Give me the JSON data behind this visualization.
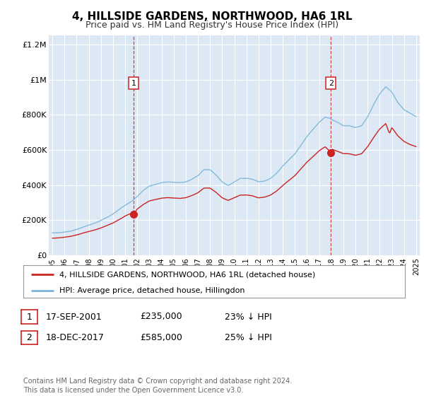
{
  "title": "4, HILLSIDE GARDENS, NORTHWOOD, HA6 1RL",
  "subtitle": "Price paid vs. HM Land Registry's House Price Index (HPI)",
  "background_color": "#dce9f5",
  "hpi_color": "#7ab4d8",
  "price_color": "#cc2222",
  "vline_color": "#cc2222",
  "purchase1": {
    "date_num": 2001.72,
    "price": 235000,
    "label": "1",
    "date_str": "17-SEP-2001",
    "pct": "23% ↓ HPI"
  },
  "purchase2": {
    "date_num": 2017.97,
    "price": 585000,
    "label": "2",
    "date_str": "18-DEC-2017",
    "pct": "25% ↓ HPI"
  },
  "legend_line1": "4, HILLSIDE GARDENS, NORTHWOOD, HA6 1RL (detached house)",
  "legend_line2": "HPI: Average price, detached house, Hillingdon",
  "footnote": "Contains HM Land Registry data © Crown copyright and database right 2024.\nThis data is licensed under the Open Government Licence v3.0.",
  "ylim": [
    0,
    1250000
  ],
  "yticks": [
    0,
    200000,
    400000,
    600000,
    800000,
    1000000,
    1200000
  ],
  "ytick_labels": [
    "£0",
    "£200K",
    "£400K",
    "£600K",
    "£800K",
    "£1M",
    "£1.2M"
  ],
  "xlim": [
    1994.7,
    2025.3
  ],
  "xticks": [
    1995,
    1996,
    1997,
    1998,
    1999,
    2000,
    2001,
    2002,
    2003,
    2004,
    2005,
    2006,
    2007,
    2008,
    2009,
    2010,
    2011,
    2012,
    2013,
    2014,
    2015,
    2016,
    2017,
    2018,
    2019,
    2020,
    2021,
    2022,
    2023,
    2024,
    2025
  ],
  "hpi_x_monthly": true,
  "price_x_monthly": true
}
